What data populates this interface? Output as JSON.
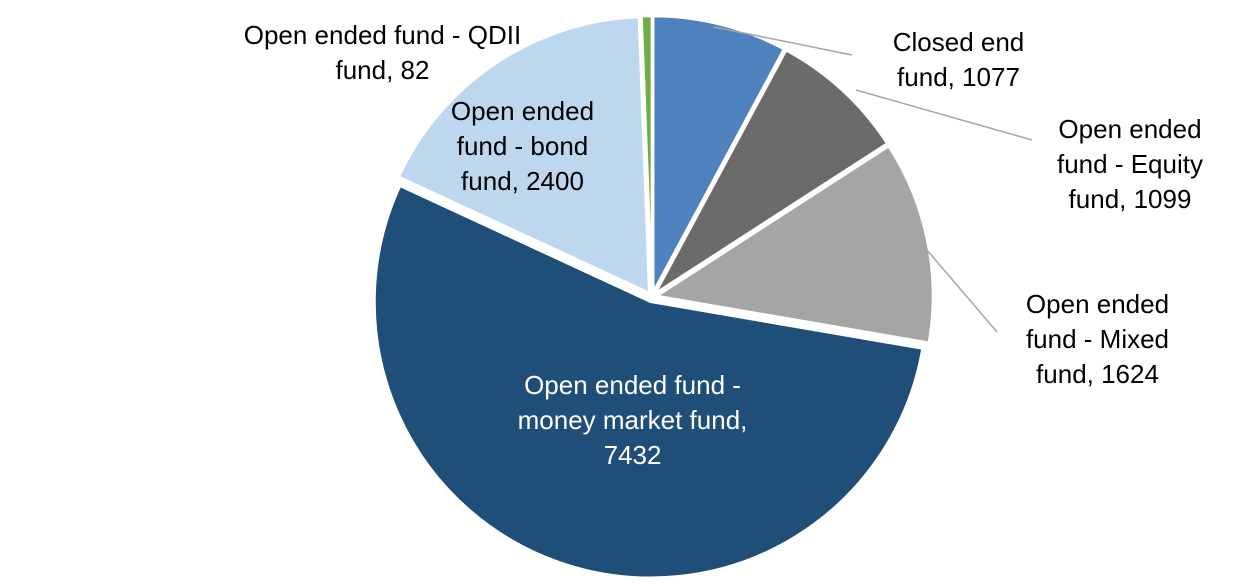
{
  "chart_data": {
    "type": "pie",
    "title": "",
    "direction": "clockwise",
    "start_angle_deg": 0,
    "grid": false,
    "legend": "none",
    "background_color": "#FFFFFF",
    "label_font_color": "#000000",
    "inside_label_font_color": "#FFFFFF",
    "leader_line_color": "#A6A6A6",
    "slices": [
      {
        "id": "closed-end-fund",
        "label": "Closed end fund",
        "value": 1077,
        "display": "Closed end\nfund, 1077",
        "color": "#4E81BD",
        "label_placement": "outside",
        "leader_line": true
      },
      {
        "id": "equity-fund",
        "label": "Open ended fund - Equity fund",
        "value": 1099,
        "display": "Open ended\nfund - Equity\nfund, 1099",
        "color": "#6B6B6B",
        "label_placement": "outside",
        "leader_line": true
      },
      {
        "id": "mixed-fund",
        "label": "Open ended fund - Mixed fund",
        "value": 1624,
        "display": "Open ended\nfund - Mixed\nfund, 1624",
        "color": "#A5A5A5",
        "label_placement": "outside",
        "leader_line": true
      },
      {
        "id": "money-market-fund",
        "label": "Open ended fund - money market fund",
        "value": 7432,
        "display": "Open ended fund -\nmoney market fund,\n7432",
        "color": "#1F4E79",
        "label_placement": "inside",
        "leader_line": false
      },
      {
        "id": "bond-fund",
        "label": "Open ended fund - bond fund",
        "value": 2400,
        "display": "Open ended\nfund - bond\nfund, 2400",
        "color": "#BDD7EE",
        "label_placement": "outside",
        "leader_line": false
      },
      {
        "id": "qdii-fund",
        "label": "Open ended fund - QDII fund",
        "value": 82,
        "display": "Open ended fund - QDII\nfund, 82",
        "color": "#70AD47",
        "label_placement": "outside",
        "leader_line": false
      }
    ]
  }
}
